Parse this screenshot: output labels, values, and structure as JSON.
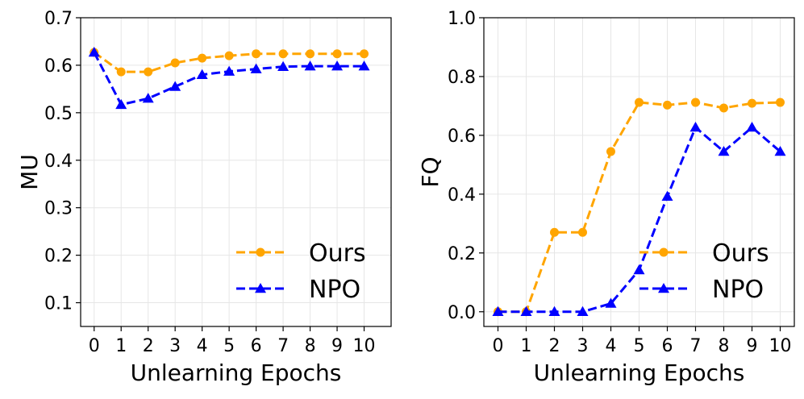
{
  "chart_data": [
    {
      "type": "line",
      "title": "",
      "xlabel": "Unlearning Epochs",
      "ylabel": "MU",
      "x": [
        0,
        1,
        2,
        3,
        4,
        5,
        6,
        7,
        8,
        9,
        10
      ],
      "xlim": [
        -0.5,
        11.0
      ],
      "ylim": [
        0.05,
        0.7
      ],
      "yticks": [
        "0.1",
        "0.2",
        "0.3",
        "0.4",
        "0.5",
        "0.6",
        "0.7"
      ],
      "ytick_values": [
        0.1,
        0.2,
        0.3,
        0.4,
        0.5,
        0.6,
        0.7
      ],
      "xticks": [
        "0",
        "1",
        "2",
        "3",
        "4",
        "5",
        "6",
        "7",
        "8",
        "9",
        "10"
      ],
      "grid": true,
      "legend_position": "lower-right",
      "series": [
        {
          "name": "Ours",
          "color": "#FFA500",
          "marker": "circle",
          "linestyle": "dashed",
          "values": [
            0.627,
            0.586,
            0.586,
            0.605,
            0.615,
            0.62,
            0.624,
            0.624,
            0.624,
            0.624,
            0.624
          ]
        },
        {
          "name": "NPO",
          "color": "#0000FF",
          "marker": "triangle",
          "linestyle": "dashed",
          "values": [
            0.627,
            0.517,
            0.53,
            0.555,
            0.58,
            0.587,
            0.592,
            0.597,
            0.598,
            0.598,
            0.598
          ]
        }
      ]
    },
    {
      "type": "line",
      "title": "",
      "xlabel": "Unlearning Epochs",
      "ylabel": "FQ",
      "x": [
        0,
        1,
        2,
        3,
        4,
        5,
        6,
        7,
        8,
        9,
        10
      ],
      "xlim": [
        -0.5,
        10.5
      ],
      "ylim": [
        -0.05,
        1.0
      ],
      "yticks": [
        "0.0",
        "0.2",
        "0.4",
        "0.6",
        "0.8",
        "1.0"
      ],
      "ytick_values": [
        0.0,
        0.2,
        0.4,
        0.6,
        0.8,
        1.0
      ],
      "xticks": [
        "0",
        "1",
        "2",
        "3",
        "4",
        "5",
        "6",
        "7",
        "8",
        "9",
        "10"
      ],
      "grid": true,
      "legend_position": "lower-right",
      "series": [
        {
          "name": "Ours",
          "color": "#FFA500",
          "marker": "circle",
          "linestyle": "dashed",
          "values": [
            0.0,
            0.0,
            0.27,
            0.27,
            0.545,
            0.712,
            0.703,
            0.712,
            0.693,
            0.709,
            0.712
          ]
        },
        {
          "name": "NPO",
          "color": "#0000FF",
          "marker": "triangle",
          "linestyle": "dashed",
          "values": [
            0.0,
            0.0,
            0.0,
            0.0,
            0.028,
            0.142,
            0.392,
            0.627,
            0.545,
            0.627,
            0.545
          ]
        }
      ]
    }
  ]
}
